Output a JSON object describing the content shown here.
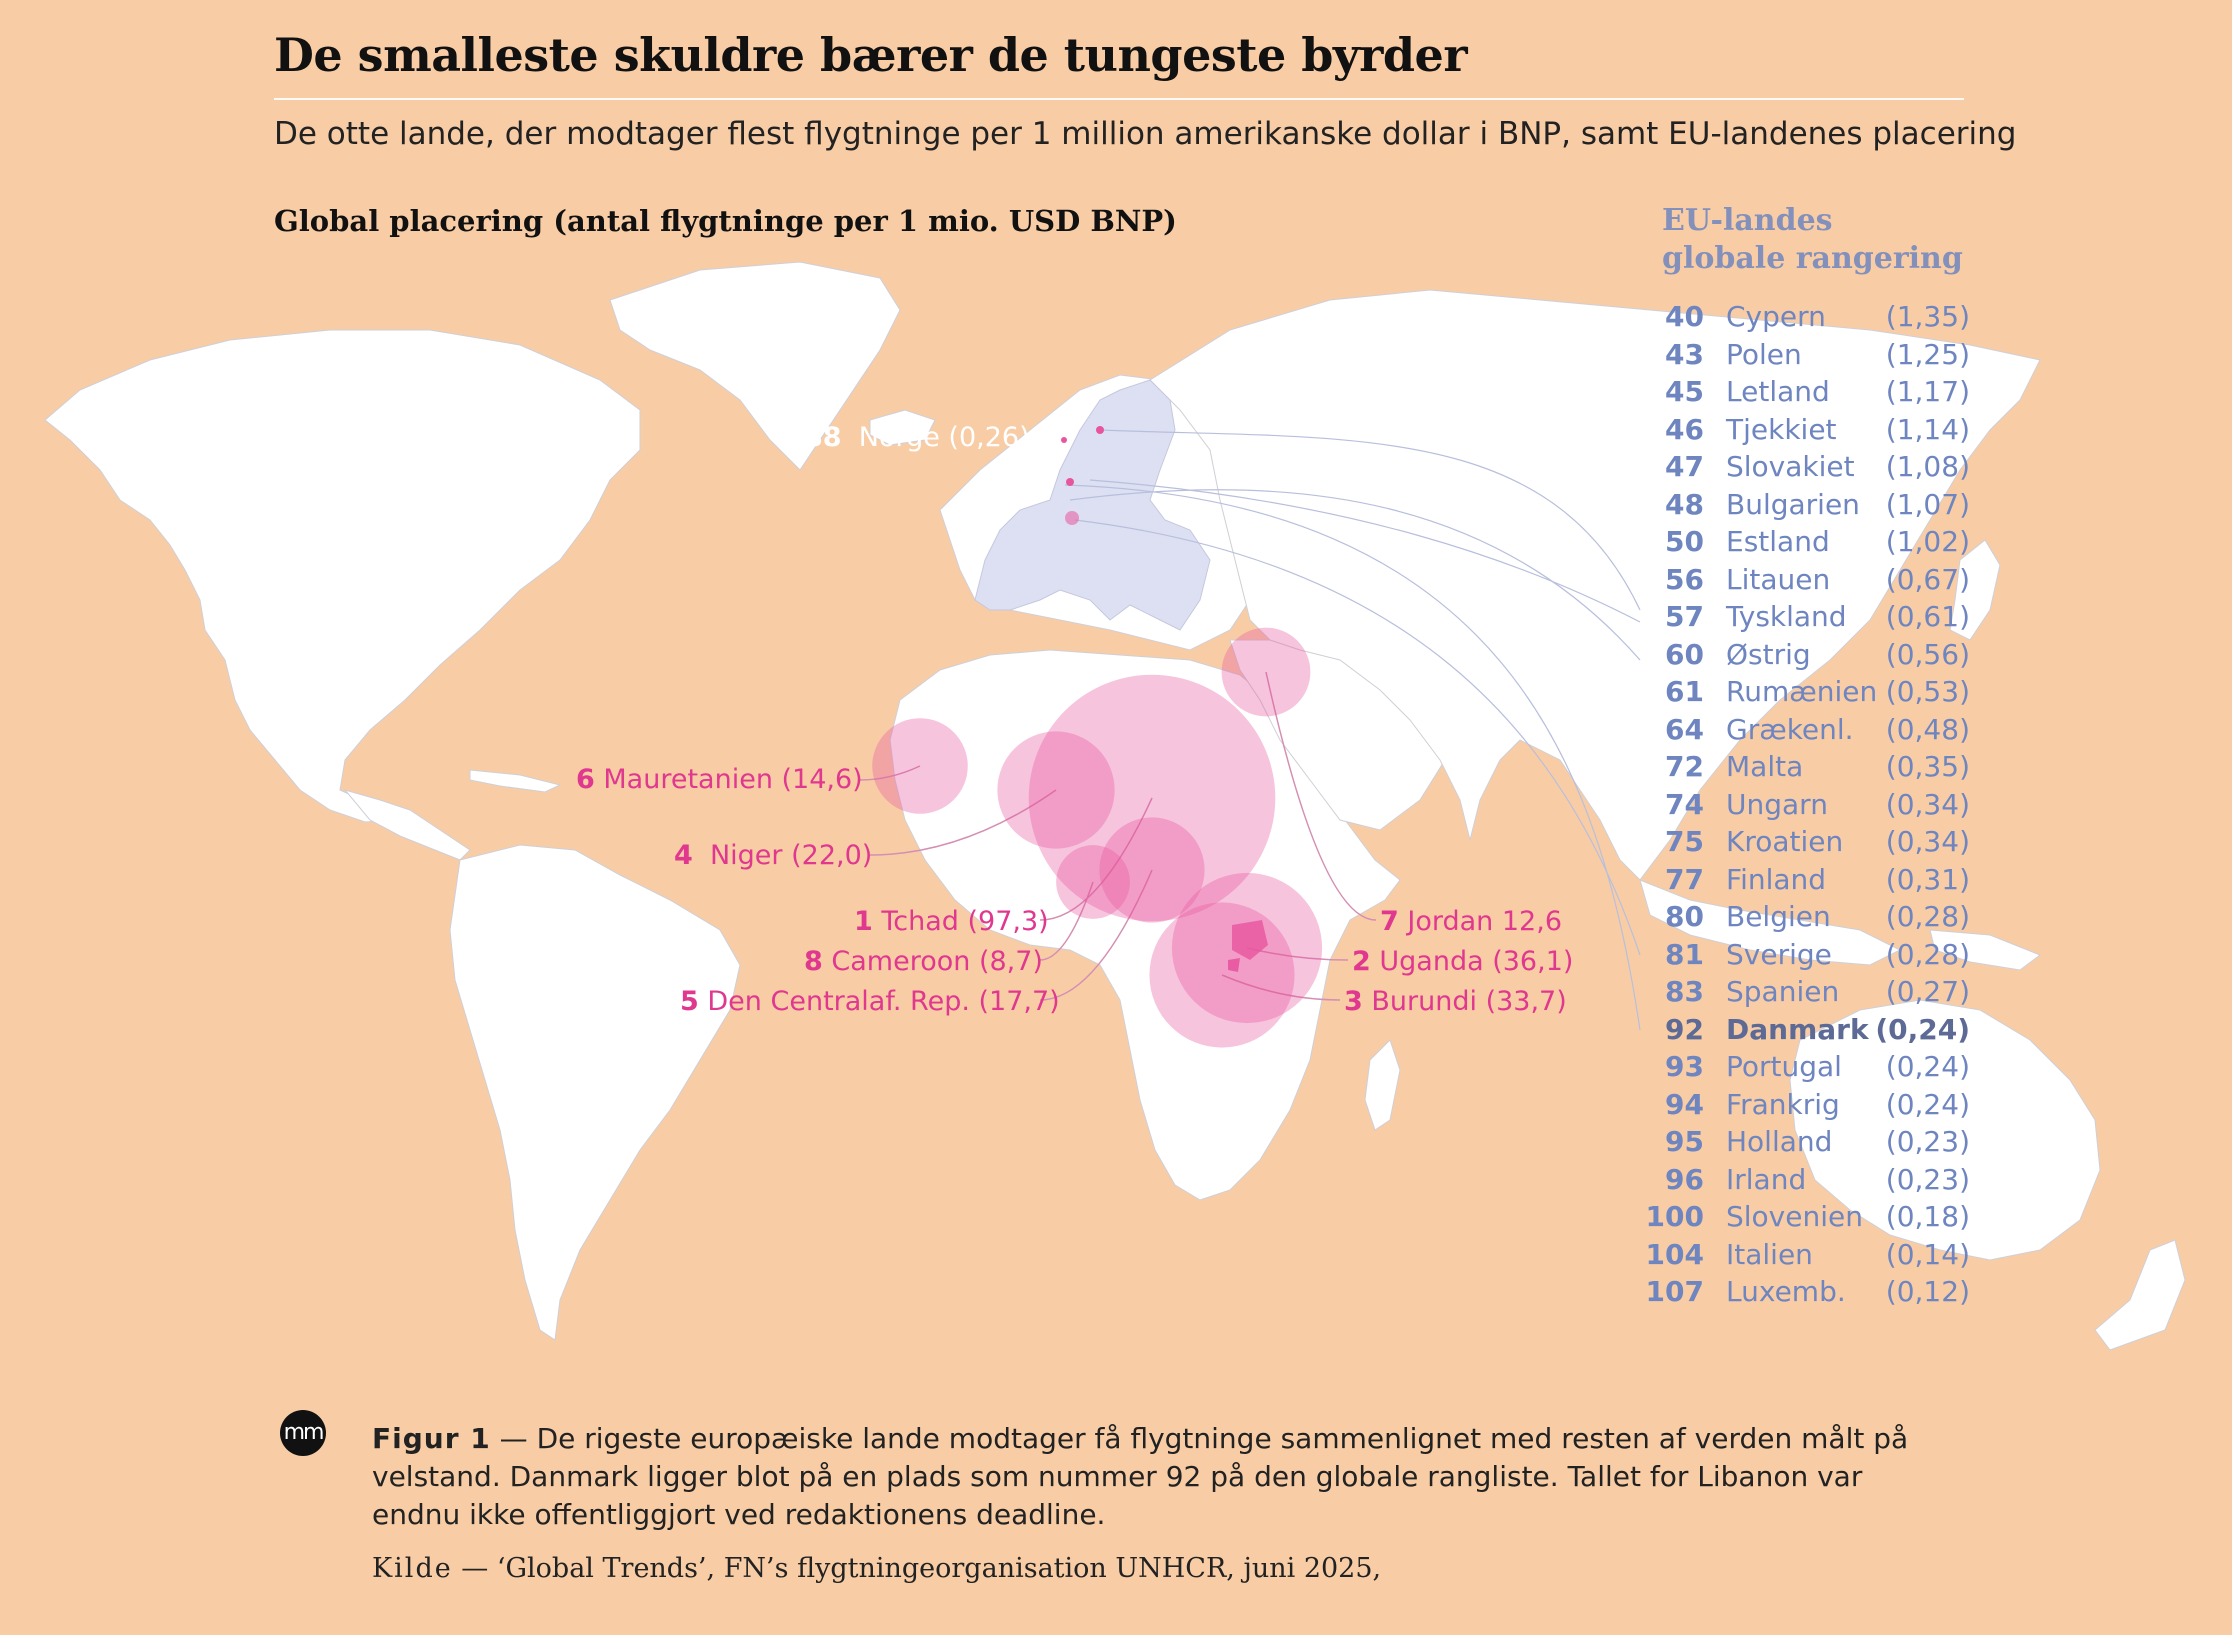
{
  "header": {
    "title": "De smalleste skuldre bærer de tungeste byrder",
    "subtitle": "De otte lande, der modtager flest flygtninge per 1 million amerikanske dollar i BNP, samt EU-landenes placering",
    "map_title": "Global placering (antal flygtninge per 1 mio. USD BNP)"
  },
  "chart_data": [
    {
      "type": "bubble-map",
      "title": "Global placering (antal flygtninge per 1 mio. USD BNP)",
      "colors": {
        "background": "#f8cda6",
        "land": "#ffffff",
        "eu": "#dde0f3",
        "bubble": "#e8559f",
        "label": "#e0378f",
        "eu_text": "#6e85c0"
      },
      "top8": [
        {
          "rank": 1,
          "name": "Tchad",
          "value": 97.3,
          "label": "Tchad (97,3)"
        },
        {
          "rank": 2,
          "name": "Uganda",
          "value": 36.1,
          "label": "Uganda (36,1)"
        },
        {
          "rank": 3,
          "name": "Burundi",
          "value": 33.7,
          "label": "Burundi (33,7)"
        },
        {
          "rank": 4,
          "name": "Niger",
          "value": 22.0,
          "label": "Niger (22,0)"
        },
        {
          "rank": 5,
          "name": "Den Centralaf. Rep.",
          "value": 17.7,
          "label": "Den Centralaf. Rep. (17,7)"
        },
        {
          "rank": 6,
          "name": "Mauretanien",
          "value": 14.6,
          "label": "Mauretanien (14,6)"
        },
        {
          "rank": 7,
          "name": "Jordan",
          "value": 12.6,
          "label": "Jordan  12,6"
        },
        {
          "rank": 8,
          "name": "Cameroon",
          "value": 8.7,
          "label": "Cameroon (8,7)"
        }
      ],
      "extra": {
        "rank": 88,
        "name": "Norge",
        "value": 0.26,
        "label": "Norge (0,26)"
      }
    },
    {
      "type": "table",
      "title": "EU-landes globale rangering",
      "rows": [
        {
          "rank": "40",
          "name": "Cypern",
          "value": "(1,35)"
        },
        {
          "rank": "43",
          "name": "Polen",
          "value": "(1,25)"
        },
        {
          "rank": "45",
          "name": "Letland",
          "value": "(1,17)"
        },
        {
          "rank": "46",
          "name": "Tjekkiet",
          "value": "(1,14)"
        },
        {
          "rank": "47",
          "name": "Slovakiet",
          "value": "(1,08)"
        },
        {
          "rank": "48",
          "name": "Bulgarien",
          "value": "(1,07)"
        },
        {
          "rank": "50",
          "name": "Estland",
          "value": "(1,02)"
        },
        {
          "rank": "56",
          "name": "Litauen",
          "value": "(0,67)"
        },
        {
          "rank": "57",
          "name": "Tyskland",
          "value": "(0,61)"
        },
        {
          "rank": "60",
          "name": "Østrig",
          "value": "(0,56)"
        },
        {
          "rank": "61",
          "name": "Rumænien",
          "value": "(0,53)"
        },
        {
          "rank": "64",
          "name": "Grækenl.",
          "value": "(0,48)"
        },
        {
          "rank": "72",
          "name": "Malta",
          "value": "(0,35)"
        },
        {
          "rank": "74",
          "name": "Ungarn",
          "value": "(0,34)"
        },
        {
          "rank": "75",
          "name": "Kroatien",
          "value": "(0,34)"
        },
        {
          "rank": "77",
          "name": "Finland",
          "value": "(0,31)"
        },
        {
          "rank": "80",
          "name": "Belgien",
          "value": "(0,28)"
        },
        {
          "rank": "81",
          "name": "Sverige",
          "value": "(0,28)"
        },
        {
          "rank": "83",
          "name": "Spanien",
          "value": "(0,27)"
        },
        {
          "rank": "92",
          "name": "Danmark",
          "value": "(0,24)",
          "highlight": true
        },
        {
          "rank": "93",
          "name": "Portugal",
          "value": "(0,24)"
        },
        {
          "rank": "94",
          "name": "Frankrig",
          "value": "(0,24)"
        },
        {
          "rank": "95",
          "name": "Holland",
          "value": "(0,23)"
        },
        {
          "rank": "96",
          "name": "Irland",
          "value": "(0,23)"
        },
        {
          "rank": "100",
          "name": "Slovenien",
          "value": "(0,18)"
        },
        {
          "rank": "104",
          "name": "Italien",
          "value": "(0,14)"
        },
        {
          "rank": "107",
          "name": "Luxemb.",
          "value": "(0,12)"
        }
      ]
    }
  ],
  "eu_panel": {
    "heading_line1": "EU-landes",
    "heading_line2": "globale rangering"
  },
  "footer": {
    "logo": "mm",
    "figure_label": "Figur 1",
    "figure_dash": " — ",
    "caption": "De rigeste europæiske lande modtager få flygtninge sammenlignet med resten af verden målt på velstand. Danmark ligger blot på en plads som nummer 92 på den globale rangliste. Tallet for Libanon var endnu ikke offentliggjort ved redaktionens deadline.",
    "source_label": "Kilde",
    "source_text": " — ‘Global Trends’, FN’s flygtningeorganisation UNHCR, juni 2025,"
  }
}
